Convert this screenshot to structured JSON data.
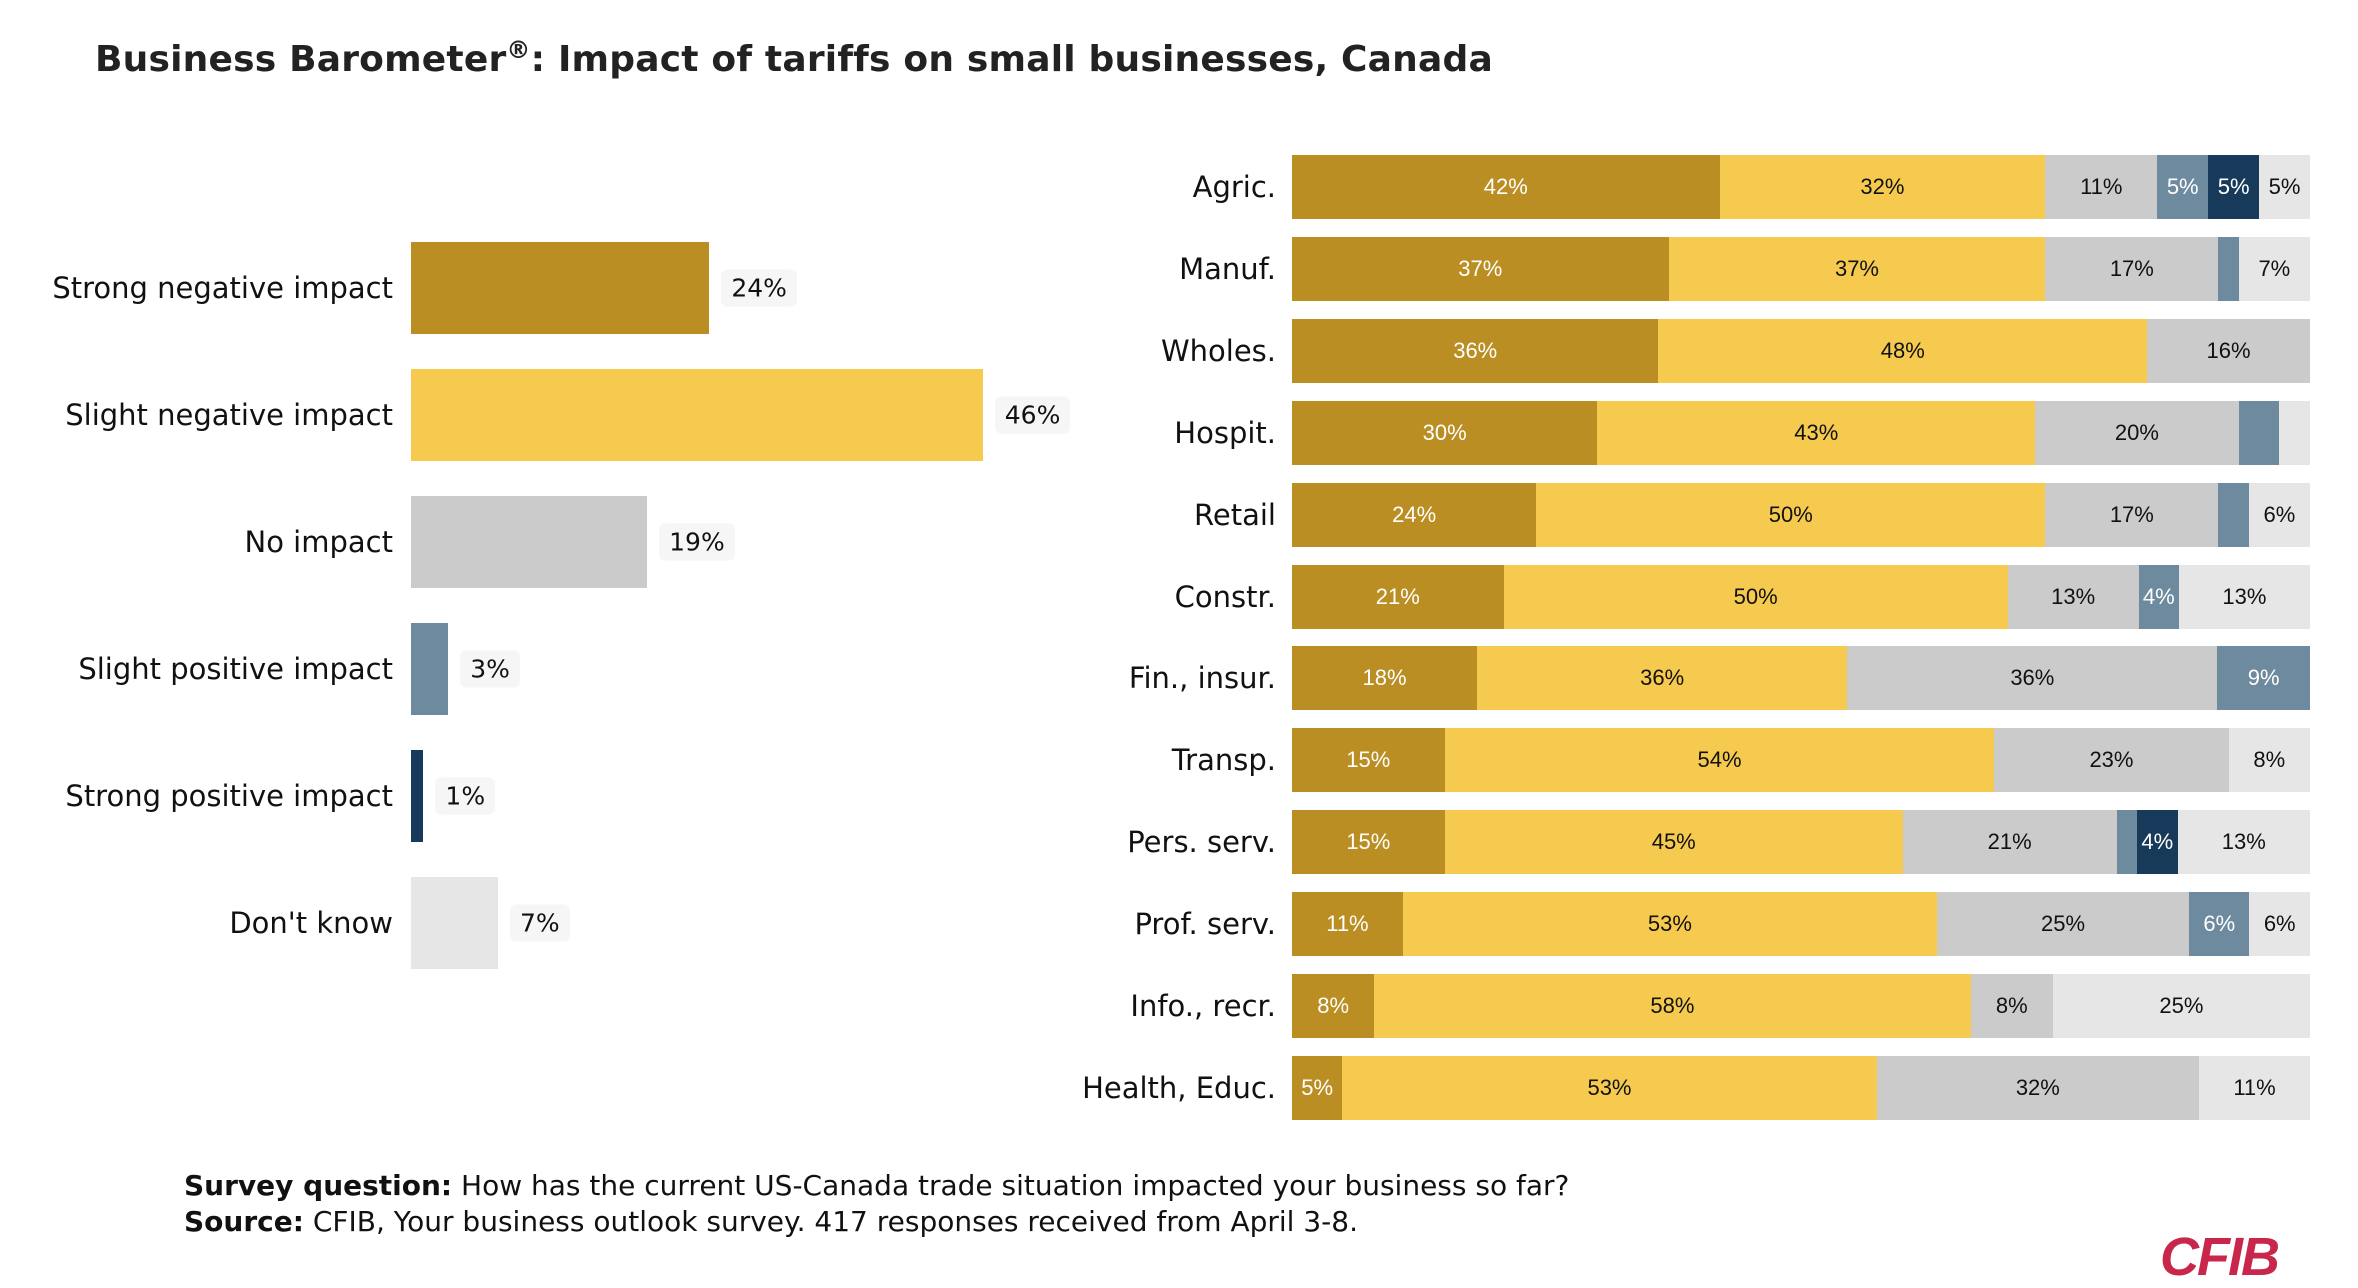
{
  "title": "Business Barometer",
  "title_mark": "®",
  "title_rest": ": Impact of tariffs on small businesses, Canada",
  "colors": {
    "strong_negative": "#BA8E23",
    "slight_negative": "#F6CA4F",
    "no_impact": "#CBCBCB",
    "slight_positive": "#6E8A9E",
    "strong_positive": "#173A5A",
    "dont_know": "#E6E6E6",
    "brand": "#C8264B"
  },
  "chart_data": [
    {
      "type": "bar",
      "orientation": "horizontal",
      "categories": [
        "Strong negative impact",
        "Slight negative impact",
        "No impact",
        "Slight positive impact",
        "Strong positive impact",
        "Don't know"
      ],
      "values": [
        24,
        46,
        19,
        3,
        1,
        7
      ],
      "labels": [
        "24%",
        "46%",
        "19%",
        "3%",
        "1%",
        "7%"
      ],
      "grid": false
    },
    {
      "type": "bar",
      "orientation": "horizontal",
      "stacked": true,
      "stack_order": [
        "Strong negative impact",
        "Slight negative impact",
        "No impact",
        "Slight positive impact",
        "Strong positive impact",
        "Don't know"
      ],
      "categories": [
        "Agric.",
        "Manuf.",
        "Wholes.",
        "Hospit.",
        "Retail",
        "Constr.",
        "Fin., insur.",
        "Transp.",
        "Pers. serv.",
        "Prof. serv.",
        "Info., recr.",
        "Health, Educ."
      ],
      "rows": [
        {
          "values": [
            42,
            32,
            11,
            5,
            5,
            5
          ],
          "labels": [
            "42%",
            "32%",
            "11%",
            "5%",
            "5%",
            "5%"
          ]
        },
        {
          "values": [
            37,
            37,
            17,
            2,
            0,
            7
          ],
          "labels": [
            "37%",
            "37%",
            "17%",
            "",
            "",
            "7%"
          ]
        },
        {
          "values": [
            36,
            48,
            16,
            0,
            0,
            0
          ],
          "labels": [
            "36%",
            "48%",
            "16%",
            "",
            "",
            ""
          ]
        },
        {
          "values": [
            30,
            43,
            20,
            4,
            0,
            3
          ],
          "labels": [
            "30%",
            "43%",
            "20%",
            "",
            "",
            ""
          ]
        },
        {
          "values": [
            24,
            50,
            17,
            3,
            0,
            6
          ],
          "labels": [
            "24%",
            "50%",
            "17%",
            "",
            "",
            "6%"
          ]
        },
        {
          "values": [
            21,
            50,
            13,
            4,
            0,
            13
          ],
          "labels": [
            "21%",
            "50%",
            "13%",
            "4%",
            "",
            "13%"
          ]
        },
        {
          "values": [
            18,
            36,
            36,
            9,
            0,
            0
          ],
          "labels": [
            "18%",
            "36%",
            "36%",
            "9%",
            "",
            ""
          ]
        },
        {
          "values": [
            15,
            54,
            23,
            0,
            0,
            8
          ],
          "labels": [
            "15%",
            "54%",
            "23%",
            "",
            "",
            "8%"
          ]
        },
        {
          "values": [
            15,
            45,
            21,
            2,
            4,
            13
          ],
          "labels": [
            "15%",
            "45%",
            "21%",
            "",
            "4%",
            "13%"
          ]
        },
        {
          "values": [
            11,
            53,
            25,
            6,
            0,
            6
          ],
          "labels": [
            "11%",
            "53%",
            "25%",
            "6%",
            "",
            "6%"
          ]
        },
        {
          "values": [
            8,
            58,
            8,
            0,
            0,
            25
          ],
          "labels": [
            "8%",
            "58%",
            "8%",
            "",
            "",
            "25%"
          ]
        },
        {
          "values": [
            5,
            53,
            32,
            0,
            0,
            11
          ],
          "labels": [
            "5%",
            "53%",
            "32%",
            "",
            "",
            "11%"
          ]
        }
      ],
      "grid": false
    }
  ],
  "footer": {
    "q_label": "Survey question:",
    "q_text": " How has the current US-Canada trade situation impacted your business so far?",
    "s_label": "Source:",
    "s_text": " CFIB, Your business outlook survey. 417 responses received from April 3-8."
  },
  "logo": "CFIB"
}
